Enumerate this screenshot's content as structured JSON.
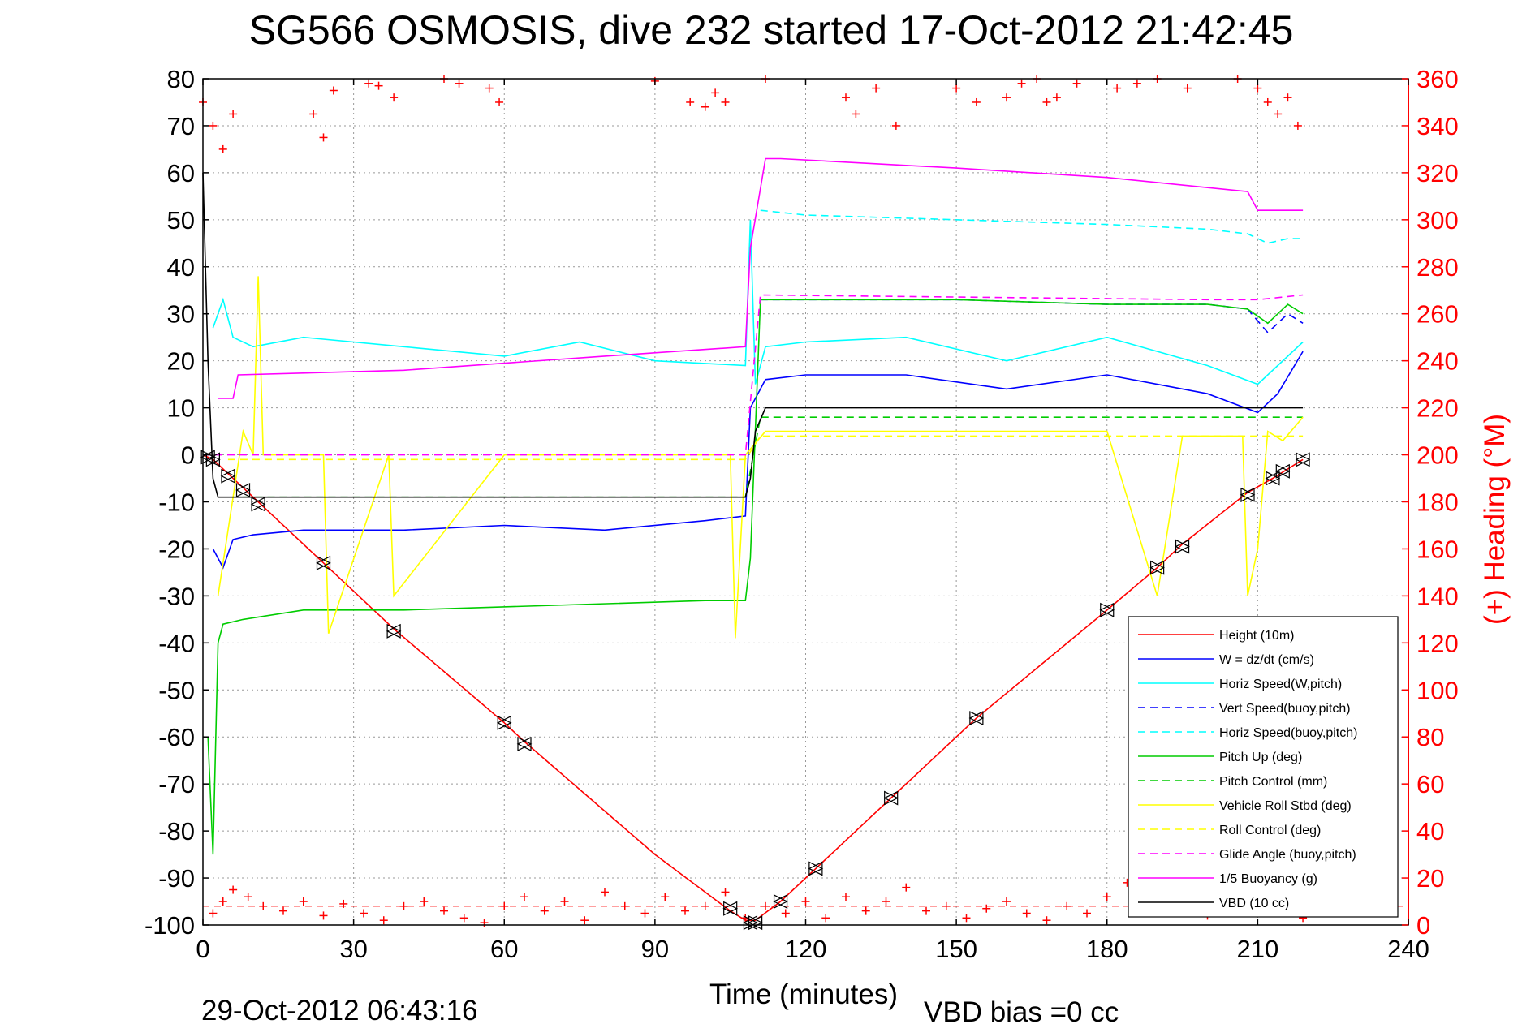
{
  "title": "SG566 OSMOSIS, dive 232 started 17-Oct-2012 21:42:45",
  "footer_left": "29-Oct-2012 06:43:16",
  "footer_right": "VBD bias =0 cc",
  "chart_data": {
    "type": "line",
    "title": "SG566 OSMOSIS, dive 232 started 17-Oct-2012 21:42:45",
    "xlabel": "Time (minutes)",
    "ylabel": "",
    "y2label": "(+) Heading (°M)",
    "xlim": [
      0,
      240
    ],
    "ylim": [
      -100,
      80
    ],
    "y2lim": [
      0,
      360
    ],
    "x_ticks": [
      0,
      30,
      60,
      90,
      120,
      150,
      180,
      210,
      240
    ],
    "y_ticks": [
      80,
      70,
      60,
      50,
      40,
      30,
      20,
      10,
      0,
      -10,
      -20,
      -30,
      -40,
      -50,
      -60,
      -70,
      -80,
      -90,
      -100
    ],
    "y2_ticks": [
      360,
      340,
      320,
      300,
      280,
      260,
      240,
      220,
      200,
      180,
      160,
      140,
      120,
      100,
      80,
      60,
      40,
      20,
      0
    ],
    "grid": true,
    "legend_position": "bottom-right",
    "series": [
      {
        "name": "Height (10m)",
        "color": "#ff0000",
        "style": "solid",
        "x": [
          0,
          2,
          5,
          8,
          11,
          24,
          38,
          60,
          64,
          90,
          105,
          108,
          110,
          115,
          122,
          137,
          154,
          180,
          190,
          195,
          208,
          213,
          219
        ],
        "y": [
          0,
          -1,
          -4,
          -7,
          -10,
          -23,
          -37,
          -57,
          -61,
          -85,
          -97,
          -99,
          -99,
          -95,
          -88,
          -73,
          -56,
          -33,
          -24,
          -19,
          -8,
          -5,
          -1
        ]
      },
      {
        "name": "W = dz/dt (cm/s)",
        "color": "#0000ff",
        "style": "solid",
        "x": [
          2,
          4,
          6,
          10,
          20,
          40,
          60,
          80,
          100,
          108,
          109,
          110,
          112,
          120,
          140,
          160,
          180,
          200,
          210,
          214,
          219
        ],
        "y": [
          -20,
          -24,
          -18,
          -17,
          -16,
          -16,
          -15,
          -16,
          -14,
          -13,
          10,
          12,
          16,
          17,
          17,
          14,
          17,
          13,
          9,
          13,
          22
        ]
      },
      {
        "name": "Horiz Speed(W,pitch)",
        "color": "#00ffff",
        "style": "solid",
        "x": [
          2,
          4,
          6,
          10,
          20,
          40,
          60,
          75,
          90,
          108,
          109,
          110,
          112,
          120,
          140,
          160,
          180,
          200,
          210,
          214,
          219
        ],
        "y": [
          27,
          33,
          25,
          23,
          25,
          23,
          21,
          24,
          20,
          19,
          50,
          15,
          23,
          24,
          25,
          20,
          25,
          19,
          15,
          19,
          24
        ]
      },
      {
        "name": "Vert Speed(buoy,pitch)",
        "color": "#0000ff",
        "style": "dashed",
        "x": [
          111,
          120,
          150,
          180,
          200,
          208,
          212,
          216,
          219
        ],
        "y": [
          33,
          33,
          33,
          32,
          32,
          31,
          26,
          30,
          28
        ]
      },
      {
        "name": "Horiz Speed(buoy,pitch)",
        "color": "#00ffff",
        "style": "dashed",
        "x": [
          111,
          120,
          150,
          180,
          200,
          208,
          212,
          216,
          219
        ],
        "y": [
          52,
          51,
          50,
          49,
          48,
          47,
          45,
          46,
          46
        ]
      },
      {
        "name": "Pitch Up (deg)",
        "color": "#00cc00",
        "style": "solid",
        "x": [
          1,
          2,
          3,
          4,
          8,
          20,
          40,
          70,
          100,
          108,
          109,
          111,
          120,
          150,
          180,
          200,
          208,
          212,
          216,
          219
        ],
        "y": [
          -60,
          -85,
          -40,
          -36,
          -35,
          -33,
          -33,
          -32,
          -31,
          -31,
          -22,
          33,
          33,
          33,
          32,
          32,
          31,
          28,
          32,
          30
        ]
      },
      {
        "name": "Pitch Control (mm)",
        "color": "#00cc00",
        "style": "dashed",
        "x": [
          8,
          108,
          111,
          219
        ],
        "y": [
          -9,
          -9,
          8,
          8
        ]
      },
      {
        "name": "Vehicle Roll Stbd (deg)",
        "color": "#ffff00",
        "style": "solid",
        "x": [
          3,
          8,
          10,
          11,
          12,
          24,
          25,
          37,
          38,
          60,
          70,
          105,
          106,
          108,
          112,
          115,
          150,
          180,
          190,
          195,
          207,
          208,
          210,
          212,
          215,
          219
        ],
        "y": [
          -30,
          5,
          0,
          38,
          0,
          0,
          -38,
          0,
          -30,
          0,
          0,
          0,
          -39,
          0,
          5,
          5,
          5,
          5,
          -30,
          4,
          4,
          -30,
          -20,
          5,
          3,
          8
        ]
      },
      {
        "name": "Roll Control (deg)",
        "color": "#ffff00",
        "style": "dashed",
        "x": [
          5,
          108,
          111,
          219
        ],
        "y": [
          -1,
          -1,
          4,
          4
        ]
      },
      {
        "name": "Glide Angle (buoy,pitch)",
        "color": "#ff00ff",
        "style": "dashed",
        "x": [
          0,
          108,
          111,
          200,
          210,
          219
        ],
        "y": [
          0,
          0,
          34,
          33,
          33,
          34
        ]
      },
      {
        "name": "1/5 Buoyancy (g)",
        "color": "#ff00ff",
        "style": "solid",
        "x": [
          3,
          6,
          7,
          40,
          80,
          108,
          109,
          112,
          115,
          150,
          180,
          208,
          210,
          212,
          219
        ],
        "y": [
          12,
          12,
          17,
          18,
          21,
          23,
          44,
          63,
          63,
          61,
          59,
          56,
          52,
          52,
          52
        ]
      },
      {
        "name": "VBD (10 cc)",
        "color": "#000000",
        "style": "solid",
        "x": [
          0,
          1,
          2,
          3,
          108,
          109,
          110,
          112,
          219
        ],
        "y": [
          60,
          20,
          -5,
          -9,
          -9,
          -5,
          5,
          10,
          10
        ]
      }
    ],
    "heading_scatter": {
      "name": "(+) Heading",
      "color": "#ff0000",
      "marker": "+",
      "mean_heading": 8,
      "x": [
        2,
        4,
        6,
        9,
        12,
        16,
        20,
        24,
        28,
        32,
        36,
        40,
        44,
        48,
        52,
        56,
        60,
        64,
        68,
        72,
        76,
        80,
        84,
        88,
        92,
        96,
        100,
        104,
        108,
        112,
        116,
        120,
        124,
        128,
        132,
        136,
        140,
        144,
        148,
        152,
        156,
        160,
        164,
        168,
        172,
        176,
        180,
        184,
        188,
        192,
        196,
        200,
        204,
        208,
        212,
        216,
        219
      ],
      "y": [
        5,
        10,
        15,
        12,
        8,
        6,
        10,
        4,
        9,
        5,
        2,
        8,
        10,
        6,
        3,
        1,
        8,
        12,
        6,
        10,
        2,
        14,
        8,
        5,
        12,
        6,
        8,
        14,
        3,
        8,
        5,
        10,
        3,
        12,
        6,
        10,
        16,
        6,
        8,
        3,
        7,
        10,
        5,
        2,
        8,
        5,
        12,
        18,
        14,
        8,
        6,
        4,
        10,
        8,
        6,
        12,
        3
      ]
    },
    "heading_scatter_top": {
      "color": "#ff0000",
      "marker": "+",
      "x": [
        0,
        2,
        4,
        6,
        22,
        24,
        26,
        33,
        35,
        38,
        48,
        51,
        57,
        59,
        90,
        97,
        100,
        102,
        104,
        112,
        128,
        130,
        134,
        138,
        150,
        154,
        160,
        163,
        166,
        168,
        170,
        174,
        182,
        186,
        190,
        196,
        206,
        210,
        212,
        214,
        216,
        218
      ],
      "y": [
        350,
        340,
        330,
        345,
        345,
        335,
        355,
        358,
        357,
        352,
        360,
        358,
        356,
        350,
        359,
        350,
        348,
        354,
        350,
        360,
        352,
        345,
        356,
        340,
        356,
        350,
        352,
        358,
        360,
        350,
        352,
        358,
        356,
        358,
        360,
        356,
        360,
        356,
        350,
        345,
        352,
        340
      ]
    },
    "markers": {
      "shape": "triangle-pair",
      "color": "#000000",
      "x": [
        1,
        2,
        5,
        8,
        11,
        24,
        38,
        60,
        64,
        105,
        109,
        110,
        115,
        122,
        137,
        154,
        180,
        190,
        195,
        208,
        213,
        215,
        219
      ],
      "y": [
        -0.5,
        -1,
        -4.5,
        -7.5,
        -10.5,
        -23,
        -37.5,
        -57,
        -61.5,
        -96.5,
        -99.5,
        -99.5,
        -95,
        -88,
        -73,
        -56,
        -33,
        -24,
        -19.5,
        -8.5,
        -5,
        -3.5,
        -1
      ]
    }
  }
}
